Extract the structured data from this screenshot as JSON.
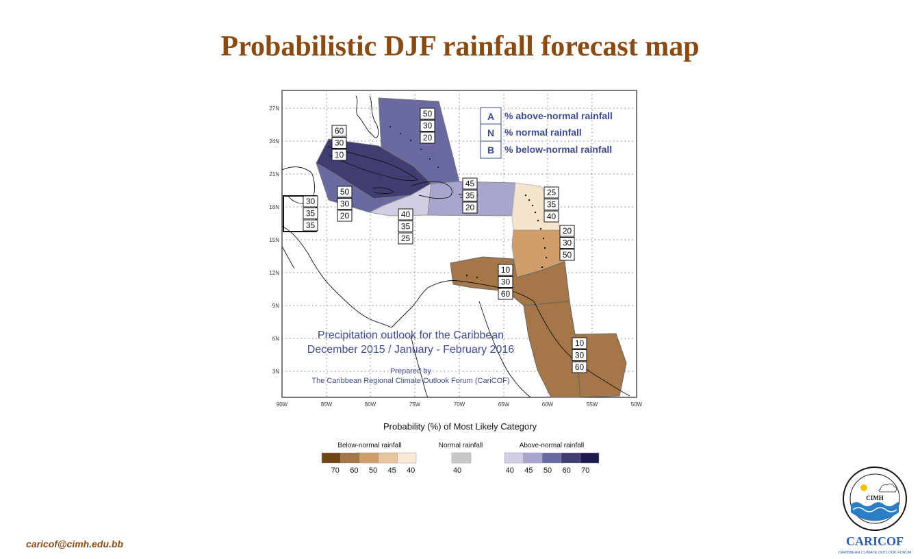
{
  "title": "Probabilistic DJF rainfall forecast map",
  "contact_email": "caricof@cimh.edu.bb",
  "map": {
    "lat_labels": [
      "27N",
      "24N",
      "21N",
      "18N",
      "15N",
      "12N",
      "9N",
      "6N",
      "3N"
    ],
    "lon_labels": [
      "90W",
      "85W",
      "80W",
      "75W",
      "70W",
      "65W",
      "60W",
      "55W",
      "50W"
    ],
    "key": [
      {
        "letter": "A",
        "text": "% above-normal rainfall"
      },
      {
        "letter": "N",
        "text": "% normal rainfall"
      },
      {
        "letter": "B",
        "text": "% below-normal rainfall"
      }
    ],
    "outlook_line1": "Precipitation outlook for the Caribbean",
    "outlook_line2": "December 2015 / January - February 2016",
    "prepared_line1": "Prepared by",
    "prepared_line2": "The Caribbean Regional Climate Outlook Forum (CariCOF)",
    "zones": [
      {
        "id": "bahamas-north",
        "values": [
          "50",
          "30",
          "20"
        ],
        "fill": "#6b6aa0"
      },
      {
        "id": "cuba-bahamas",
        "values": [
          "60",
          "30",
          "10"
        ],
        "fill": "#3f3d72"
      },
      {
        "id": "cayman-jamaica-region",
        "values": [
          "50",
          "30",
          "20"
        ],
        "fill": "#6b6aa0"
      },
      {
        "id": "belize",
        "values": [
          "30",
          "35",
          "35"
        ],
        "fill": "#ffffff"
      },
      {
        "id": "jamaica-south",
        "values": [
          "40",
          "35",
          "25"
        ],
        "fill": "#d0cde4"
      },
      {
        "id": "hispaniola-puerto-rico",
        "values": [
          "45",
          "35",
          "20"
        ],
        "fill": "#a7a5cc"
      },
      {
        "id": "northern-leewards",
        "values": [
          "25",
          "35",
          "40"
        ],
        "fill": "#f6e4cc"
      },
      {
        "id": "windwards",
        "values": [
          "20",
          "30",
          "50"
        ],
        "fill": "#d09e6a"
      },
      {
        "id": "abc-islands-trinidad",
        "values": [
          "10",
          "30",
          "60"
        ],
        "fill": "#a57648"
      },
      {
        "id": "guianas",
        "values": [
          "10",
          "30",
          "60"
        ],
        "fill": "#a57648"
      }
    ]
  },
  "legend": {
    "title": "Probability (%) of Most Likely Category",
    "below": {
      "label": "Below-normal rainfall",
      "values": [
        "70",
        "60",
        "50",
        "45",
        "40"
      ],
      "colors": [
        "#6e4714",
        "#a57648",
        "#d09e6a",
        "#e8c59c",
        "#f9e7d6"
      ]
    },
    "normal": {
      "label": "Normal rainfall",
      "values": [
        "40"
      ],
      "colors": [
        "#c8c8c8"
      ]
    },
    "above": {
      "label": "Above-normal rainfall",
      "values": [
        "40",
        "45",
        "50",
        "60",
        "70"
      ],
      "colors": [
        "#d0cde4",
        "#a7a5cc",
        "#6b6aa0",
        "#3f3d72",
        "#1d1a4d"
      ]
    }
  },
  "logo": {
    "org_text": "CIMH",
    "ring_text": "Caribbean Institute for Meteorology and Hydrology",
    "brand": "CARICOF",
    "brand_sub": "CARIBBEAN CLIMATE OUTLOOK FORUM"
  }
}
